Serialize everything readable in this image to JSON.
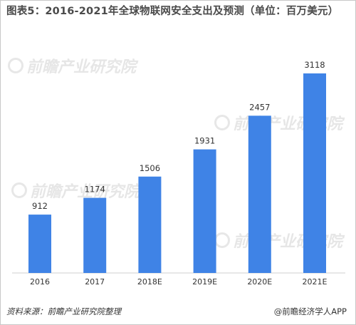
{
  "title": "图表5：2016-2021年全球物联网安全支出及预测（单位：百万美元）",
  "source": "资料来源：前瞻产业研究院整理",
  "brand": "@前瞻经济学人APP",
  "watermark": "前瞻产业研究院",
  "colors": {
    "bar": "#3f83e6",
    "axis": "#cfcfcf",
    "label": "#333333"
  },
  "chart_data": {
    "type": "bar",
    "categories": [
      "2016",
      "2017",
      "2018E",
      "2019E",
      "2020E",
      "2021E"
    ],
    "values": [
      912,
      1174,
      1506,
      1931,
      2457,
      3118
    ],
    "data_labels": [
      "912",
      "1174",
      "1506",
      "1931",
      "2457",
      "3118"
    ],
    "xlabel": "",
    "ylabel": "",
    "ylim": [
      0,
      3118
    ],
    "grid": false,
    "legend": "none"
  }
}
